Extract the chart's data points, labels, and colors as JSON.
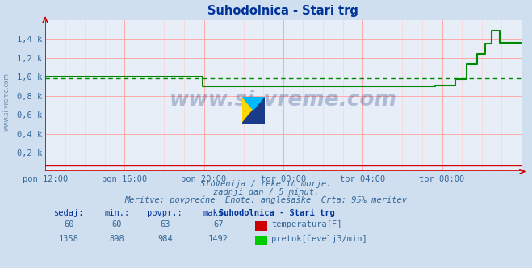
{
  "title": "Suhodolnica - Stari trg",
  "title_color": "#003399",
  "bg_color": "#d0dff0",
  "plot_bg_color": "#e8eef8",
  "grid_color_major": "#ffaaaa",
  "grid_color_minor": "#ffcccc",
  "axis_color": "#cc0000",
  "text_color": "#336699",
  "bold_color": "#003399",
  "figsize": [
    6.59,
    3.32
  ],
  "dpi": 100,
  "xlim": [
    0,
    288
  ],
  "ylim": [
    0,
    1600
  ],
  "yticks": [
    0,
    200,
    400,
    600,
    800,
    1000,
    1200,
    1400
  ],
  "ytick_labels": [
    "",
    "0,2 k",
    "0,4 k",
    "0,6 k",
    "0,8 k",
    "1,0 k",
    "1,2 k",
    "1,4 k"
  ],
  "xtick_positions": [
    0,
    48,
    96,
    144,
    192,
    240,
    288
  ],
  "xtick_labels": [
    "pon 12:00",
    "pon 16:00",
    "pon 20:00",
    "tor 00:00",
    "tor 04:00",
    "tor 08:00",
    ""
  ],
  "watermark": "www.si-vreme.com",
  "subtitle1": "Slovenija / reke in morje.",
  "subtitle2": "zadnji dan / 5 minut.",
  "subtitle3": "Meritve: povprečne  Enote: anglešaške  Črta: 95% meritev",
  "legend_title": "Suhodolnica - Stari trg",
  "col_headers": [
    "sedaj:",
    "min.:",
    "povpr.:",
    "maks.:"
  ],
  "legend_rows": [
    {
      "sedaj": "60",
      "min": "60",
      "povpr": "63",
      "maks": "67",
      "color": "#cc0000",
      "label": "temperatura[F]"
    },
    {
      "sedaj": "1358",
      "min": "898",
      "povpr": "984",
      "maks": "1492",
      "color": "#00cc00",
      "label": "pretok[čevelj3/min]"
    }
  ],
  "flow_x": [
    0,
    95,
    95,
    110,
    110,
    236,
    236,
    248,
    248,
    255,
    255,
    261,
    261,
    266,
    266,
    270,
    270,
    275,
    275,
    280,
    280,
    288
  ],
  "flow_y": [
    998,
    998,
    898,
    898,
    898,
    898,
    910,
    910,
    980,
    980,
    1140,
    1140,
    1240,
    1240,
    1350,
    1350,
    1492,
    1492,
    1358,
    1358,
    1358,
    1358
  ],
  "flow_avg_y": 984,
  "flow_color": "#008800",
  "flow_avg_color": "#008800",
  "temp_color": "#cc0000",
  "temp_y": 60
}
